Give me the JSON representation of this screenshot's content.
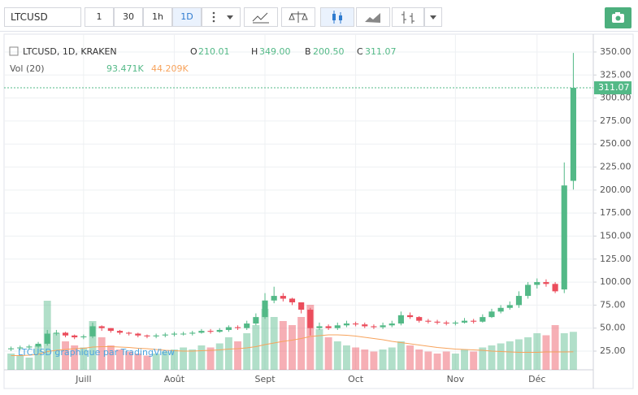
{
  "toolbar": {
    "symbol": "LTCUSD",
    "intervals": [
      "1",
      "30",
      "1h",
      "1D"
    ],
    "active_interval": 3
  },
  "chart_data": {
    "type": "candlestick",
    "title": "LTCUSD, 1D, KRAKEN",
    "legend_letters": [
      "O",
      "H",
      "B",
      "C"
    ],
    "last_labels": {
      "open": "210.01",
      "high": "349.00",
      "low": "200.50",
      "close": "311.07",
      "volume": "93.471K",
      "volume_ma": "44.209K"
    },
    "volume_title": "Vol (20)",
    "watermark": "LTCUSD graphique par TradingView",
    "categories": [
      null,
      null,
      null,
      null,
      null,
      null,
      null,
      null,
      "Juill",
      null,
      null,
      null,
      null,
      null,
      null,
      null,
      null,
      null,
      "Août",
      null,
      null,
      null,
      null,
      null,
      null,
      null,
      null,
      null,
      "Sept",
      null,
      null,
      null,
      null,
      null,
      null,
      null,
      null,
      null,
      "Oct",
      null,
      null,
      null,
      null,
      null,
      null,
      null,
      null,
      null,
      null,
      "Nov",
      null,
      null,
      null,
      null,
      null,
      null,
      null,
      null,
      "Déc",
      null,
      null,
      null,
      null
    ],
    "open": [
      27,
      28,
      29,
      30,
      33,
      44,
      45,
      42,
      40,
      41,
      52,
      50,
      47,
      45,
      44,
      42,
      41,
      42,
      43,
      44,
      44,
      45,
      47,
      46,
      48,
      51,
      50,
      55,
      62,
      80,
      85,
      82,
      78,
      70,
      50,
      52,
      50,
      53,
      55,
      54,
      52,
      51,
      53,
      55,
      64,
      62,
      58,
      57,
      56,
      55,
      56,
      58,
      57,
      62,
      68,
      72,
      75,
      85,
      97,
      100,
      98,
      92,
      210.01
    ],
    "high": [
      30,
      31,
      32,
      35,
      48,
      48,
      46,
      43,
      43,
      56,
      53,
      50,
      48,
      46,
      45,
      43,
      44,
      45,
      46,
      46,
      47,
      49,
      49,
      50,
      53,
      53,
      58,
      66,
      88,
      95,
      88,
      83,
      78,
      72,
      56,
      54,
      56,
      58,
      57,
      56,
      54,
      56,
      58,
      68,
      67,
      63,
      60,
      59,
      58,
      58,
      61,
      60,
      65,
      71,
      75,
      79,
      90,
      100,
      104,
      103,
      100,
      230,
      349
    ],
    "low": [
      25,
      26,
      27,
      28,
      31,
      42,
      40,
      38,
      38,
      39,
      47,
      45,
      43,
      42,
      40,
      39,
      39,
      40,
      41,
      42,
      42,
      44,
      44,
      45,
      46,
      48,
      48,
      53,
      60,
      77,
      79,
      75,
      66,
      42,
      48,
      48,
      48,
      51,
      52,
      50,
      49,
      49,
      51,
      53,
      60,
      56,
      55,
      54,
      53,
      53,
      55,
      55,
      56,
      61,
      66,
      70,
      72,
      82,
      93,
      95,
      88,
      88,
      200.5
    ],
    "close": [
      28,
      29,
      30,
      33,
      44,
      45,
      42,
      40,
      41,
      52,
      50,
      47,
      45,
      44,
      42,
      41,
      42,
      43,
      44,
      44,
      45,
      47,
      46,
      48,
      51,
      50,
      55,
      62,
      80,
      85,
      82,
      78,
      70,
      50,
      52,
      50,
      53,
      55,
      54,
      52,
      51,
      53,
      55,
      64,
      62,
      58,
      57,
      56,
      55,
      56,
      58,
      57,
      62,
      68,
      72,
      75,
      85,
      97,
      100,
      98,
      90,
      205,
      311.07
    ],
    "volume": [
      40,
      35,
      30,
      60,
      170,
      90,
      70,
      60,
      55,
      120,
      80,
      60,
      50,
      45,
      40,
      35,
      40,
      45,
      50,
      55,
      50,
      60,
      55,
      65,
      80,
      70,
      90,
      110,
      150,
      130,
      120,
      110,
      130,
      160,
      100,
      80,
      70,
      60,
      55,
      50,
      45,
      50,
      55,
      70,
      60,
      50,
      45,
      40,
      45,
      40,
      50,
      45,
      55,
      60,
      65,
      70,
      75,
      80,
      90,
      85,
      110,
      90,
      93.471
    ],
    "volume_ma": [
      35,
      35,
      36,
      38,
      45,
      48,
      50,
      52,
      53,
      56,
      57,
      57,
      56,
      55,
      53,
      52,
      50,
      48,
      47,
      46,
      46,
      47,
      48,
      49,
      51,
      52,
      54,
      57,
      62,
      66,
      70,
      73,
      77,
      82,
      84,
      86,
      86,
      85,
      83,
      80,
      77,
      74,
      70,
      67,
      64,
      61,
      58,
      55,
      53,
      51,
      50,
      49,
      48,
      46,
      45,
      44,
      43,
      43,
      43,
      44,
      44,
      44,
      44.209
    ],
    "volume_ylim": [
      0,
      200
    ],
    "ylim": [
      4.7,
      369.4
    ],
    "yticks": [
      {
        "value": 25,
        "label": "25.00"
      },
      {
        "value": 50,
        "label": "50.00"
      },
      {
        "value": 75,
        "label": "75.00"
      },
      {
        "value": 100,
        "label": "100.00"
      },
      {
        "value": 125,
        "label": "125.00"
      },
      {
        "value": 150,
        "label": "150.00"
      },
      {
        "value": 175,
        "label": "175.00"
      },
      {
        "value": 200,
        "label": "200.00"
      },
      {
        "value": 225,
        "label": "225.00"
      },
      {
        "value": 250,
        "label": "250.00"
      },
      {
        "value": 275,
        "label": "275.00"
      },
      {
        "value": 300,
        "label": "300.00"
      },
      {
        "value": 325,
        "label": "325.00"
      },
      {
        "value": 350,
        "label": "350.00"
      }
    ],
    "grid": true,
    "up_color": "#53b987",
    "down_color": "#eb4d5c",
    "ma_color": "#f7a35c"
  }
}
